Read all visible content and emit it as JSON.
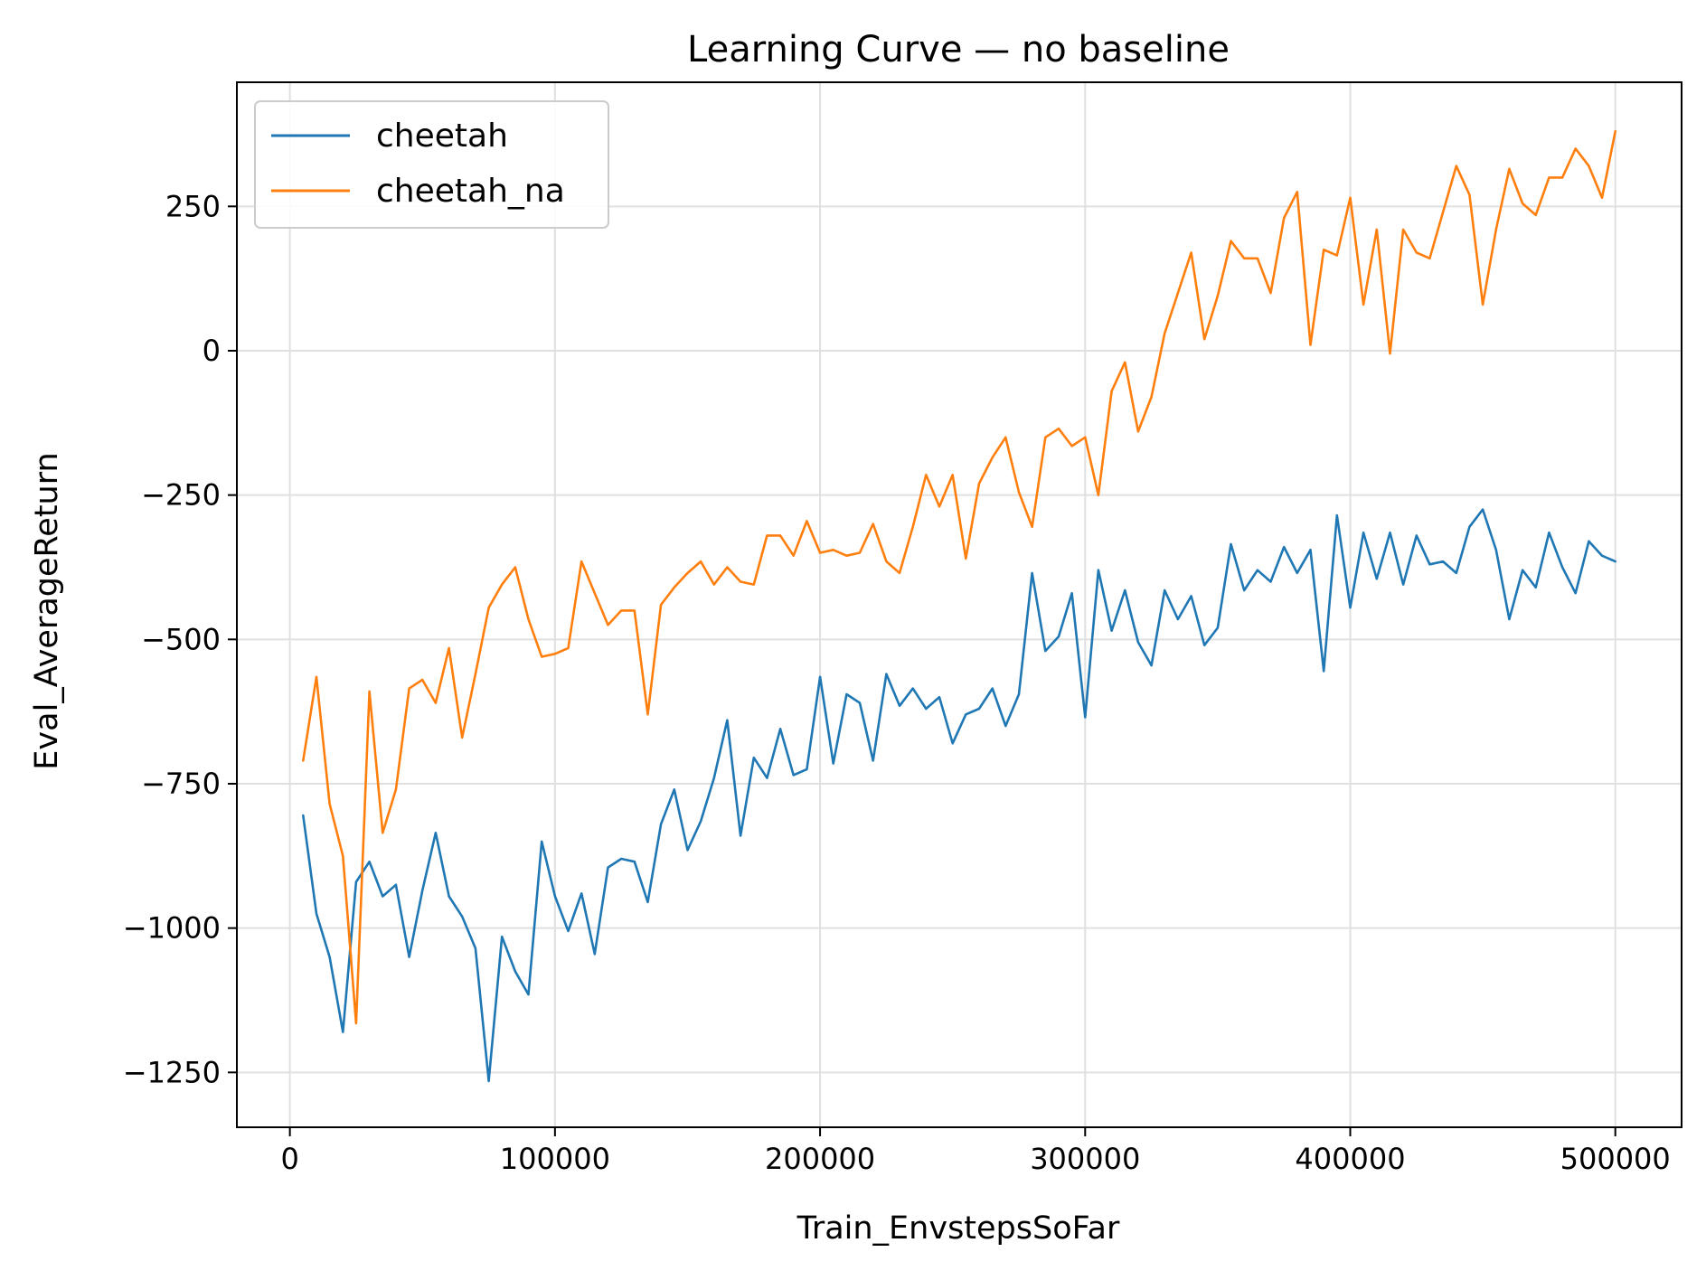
{
  "chart_data": {
    "type": "line",
    "title": "Learning Curve — no baseline",
    "xlabel": "Train_EnvstepsSoFar",
    "ylabel": "Eval_AverageReturn",
    "xlim": [
      -20000,
      525000
    ],
    "ylim": [
      -1345,
      465
    ],
    "xticks": [
      0,
      100000,
      200000,
      300000,
      400000,
      500000
    ],
    "xtick_labels": [
      "0",
      "100000",
      "200000",
      "300000",
      "400000",
      "500000"
    ],
    "yticks": [
      -1250,
      -1000,
      -750,
      -500,
      -250,
      0,
      250
    ],
    "ytick_labels": [
      "−1250",
      "−1000",
      "−750",
      "−500",
      "−250",
      "0",
      "250"
    ],
    "grid": true,
    "legend_position": "upper-left",
    "x": [
      5000,
      10000,
      15000,
      20000,
      25000,
      30000,
      35000,
      40000,
      45000,
      50000,
      55000,
      60000,
      65000,
      70000,
      75000,
      80000,
      85000,
      90000,
      95000,
      100000,
      105000,
      110000,
      115000,
      120000,
      125000,
      130000,
      135000,
      140000,
      145000,
      150000,
      155000,
      160000,
      165000,
      170000,
      175000,
      180000,
      185000,
      190000,
      195000,
      200000,
      205000,
      210000,
      215000,
      220000,
      225000,
      230000,
      235000,
      240000,
      245000,
      250000,
      255000,
      260000,
      265000,
      270000,
      275000,
      280000,
      285000,
      290000,
      295000,
      300000,
      305000,
      310000,
      315000,
      320000,
      325000,
      330000,
      335000,
      340000,
      345000,
      350000,
      355000,
      360000,
      365000,
      370000,
      375000,
      380000,
      385000,
      390000,
      395000,
      400000,
      405000,
      410000,
      415000,
      420000,
      425000,
      430000,
      435000,
      440000,
      445000,
      450000,
      455000,
      460000,
      465000,
      470000,
      475000,
      480000,
      485000,
      490000,
      495000,
      500000
    ],
    "series": [
      {
        "name": "cheetah",
        "color": "#1f77b4",
        "values": [
          -805,
          -975,
          -1050,
          -1180,
          -920,
          -885,
          -945,
          -925,
          -1050,
          -935,
          -835,
          -945,
          -980,
          -1035,
          -1265,
          -1015,
          -1075,
          -1115,
          -850,
          -945,
          -1005,
          -940,
          -1045,
          -895,
          -880,
          -885,
          -955,
          -820,
          -760,
          -865,
          -815,
          -740,
          -640,
          -840,
          -705,
          -740,
          -655,
          -735,
          -725,
          -565,
          -715,
          -595,
          -610,
          -710,
          -560,
          -615,
          -585,
          -620,
          -600,
          -680,
          -630,
          -620,
          -585,
          -650,
          -595,
          -385,
          -520,
          -495,
          -420,
          -635,
          -380,
          -485,
          -415,
          -505,
          -545,
          -415,
          -465,
          -425,
          -510,
          -480,
          -335,
          -415,
          -380,
          -400,
          -340,
          -385,
          -345,
          -555,
          -285,
          -445,
          -315,
          -395,
          -315,
          -405,
          -320,
          -370,
          -365,
          -385,
          -305,
          -275,
          -345,
          -465,
          -380,
          -410,
          -315,
          -375,
          -420,
          -330,
          -355,
          -365
        ]
      },
      {
        "name": "cheetah_na",
        "color": "#ff7f0e",
        "values": [
          -710,
          -565,
          -785,
          -875,
          -1165,
          -590,
          -835,
          -760,
          -585,
          -570,
          -610,
          -515,
          -670,
          -560,
          -445,
          -405,
          -375,
          -465,
          -530,
          -525,
          -515,
          -365,
          -420,
          -475,
          -450,
          -450,
          -630,
          -440,
          -410,
          -385,
          -365,
          -405,
          -375,
          -400,
          -405,
          -320,
          -320,
          -355,
          -295,
          -350,
          -345,
          -355,
          -350,
          -300,
          -365,
          -385,
          -305,
          -215,
          -270,
          -215,
          -360,
          -230,
          -185,
          -150,
          -245,
          -305,
          -150,
          -135,
          -165,
          -150,
          -250,
          -70,
          -20,
          -140,
          -80,
          30,
          100,
          170,
          20,
          95,
          190,
          160,
          160,
          100,
          230,
          275,
          10,
          175,
          165,
          265,
          80,
          210,
          -5,
          210,
          170,
          160,
          240,
          320,
          270,
          80,
          210,
          315,
          255,
          235,
          300,
          300,
          350,
          320,
          265,
          380
        ]
      }
    ]
  }
}
